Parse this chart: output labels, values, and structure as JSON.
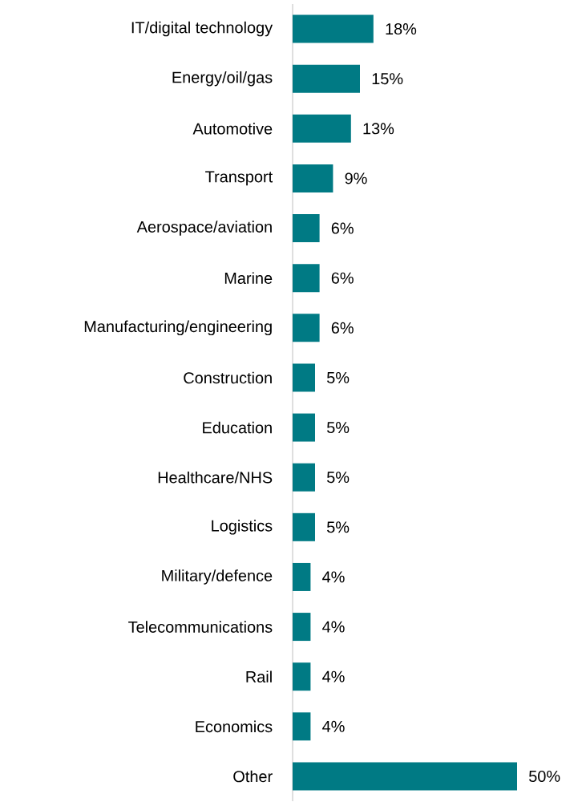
{
  "chart_data": {
    "type": "bar",
    "orientation": "horizontal",
    "color": "#007a84",
    "categories": [
      "IT/digital technology",
      "Energy/oil/gas",
      "Automotive",
      "Transport",
      "Aerospace/aviation",
      "Marine",
      "Manufacturing/engineering",
      "Construction",
      "Education",
      "Healthcare/NHS",
      "Logistics",
      "Military/defence",
      "Telecommunications",
      "Rail",
      "Economics",
      "Other"
    ],
    "values": [
      18,
      15,
      13,
      9,
      6,
      6,
      6,
      5,
      5,
      5,
      5,
      4,
      4,
      4,
      4,
      50
    ],
    "value_labels": [
      "18%",
      "15%",
      "13%",
      "9%",
      "6%",
      "6%",
      "6%",
      "5%",
      "5%",
      "5%",
      "5%",
      "4%",
      "4%",
      "4%",
      "4%",
      "50%"
    ]
  }
}
